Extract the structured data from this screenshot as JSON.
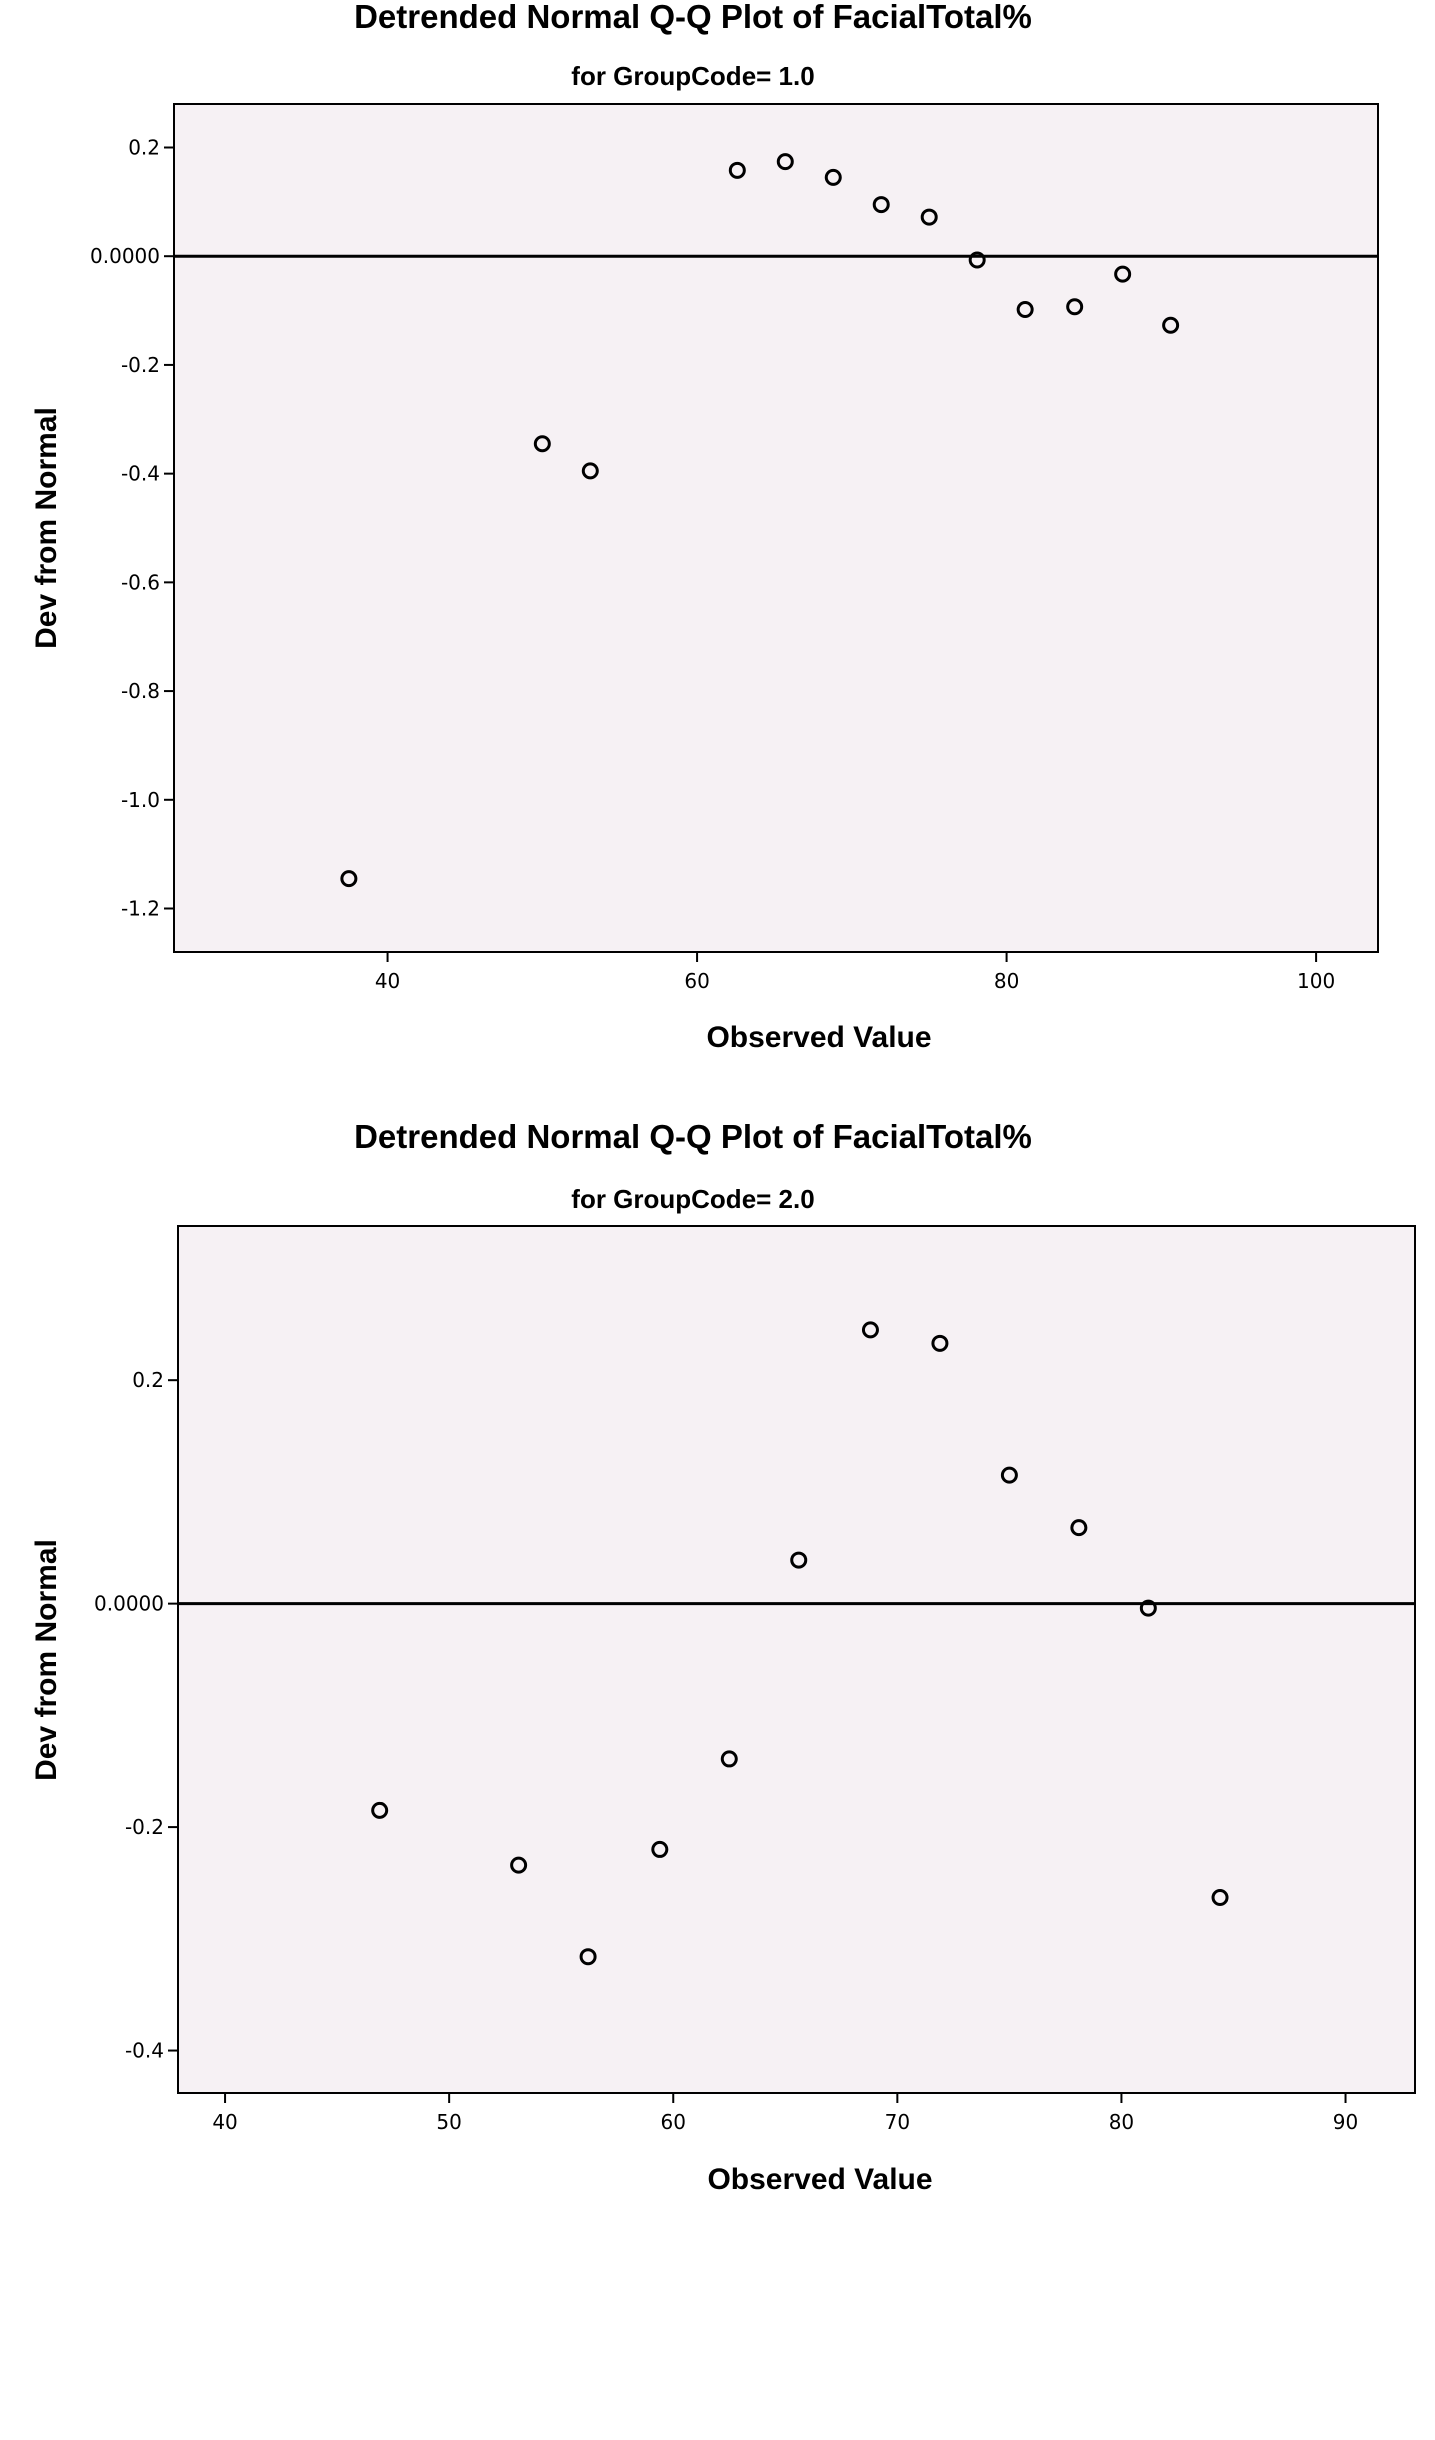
{
  "chart_data": [
    {
      "type": "scatter",
      "title": "Detrended Normal Q-Q Plot of FacialTotal%",
      "subtitle": "for GroupCode= 1.0",
      "xlabel": "Observed Value",
      "ylabel": "Dev from Normal",
      "xlim": [
        26.2,
        104
      ],
      "ylim": [
        -1.28,
        0.28
      ],
      "xticks": [
        40,
        60,
        80,
        100
      ],
      "xtick_labels": [
        "40",
        "60",
        "80",
        "100"
      ],
      "yticks": [
        0.2,
        0.0,
        -0.2,
        -0.4,
        -0.6,
        -0.8,
        -1.0,
        -1.2
      ],
      "ytick_labels": [
        "0.2",
        "0.0000",
        "-0.2",
        "-0.4",
        "-0.6",
        "-0.8",
        "-1.0",
        "-1.2"
      ],
      "reference_line": 0,
      "grid": false,
      "marker": "open-circle",
      "colors": {
        "plot_background": "#f6f1f4",
        "marker": "#000000",
        "reference_line": "#000000"
      },
      "points": [
        {
          "x": 37.5,
          "y": -1.145
        },
        {
          "x": 50.0,
          "y": -0.345
        },
        {
          "x": 53.1,
          "y": -0.395
        },
        {
          "x": 62.6,
          "y": 0.158
        },
        {
          "x": 65.7,
          "y": 0.174
        },
        {
          "x": 68.8,
          "y": 0.145
        },
        {
          "x": 71.9,
          "y": 0.095
        },
        {
          "x": 75.0,
          "y": 0.072
        },
        {
          "x": 78.1,
          "y": -0.007
        },
        {
          "x": 81.2,
          "y": -0.098
        },
        {
          "x": 84.4,
          "y": -0.093
        },
        {
          "x": 87.5,
          "y": -0.033
        },
        {
          "x": 90.6,
          "y": -0.127
        }
      ]
    },
    {
      "type": "scatter",
      "title": "Detrended Normal Q-Q Plot of FacialTotal%",
      "subtitle": "for GroupCode= 2.0",
      "xlabel": "Observed Value",
      "ylabel": "Dev from Normal",
      "xlim": [
        37.9,
        93.1
      ],
      "ylim": [
        -0.438,
        0.338
      ],
      "xticks": [
        40,
        50,
        60,
        70,
        80,
        90
      ],
      "xtick_labels": [
        "40",
        "50",
        "60",
        "70",
        "80",
        "90"
      ],
      "yticks": [
        0.2,
        0.0,
        -0.2,
        -0.4
      ],
      "ytick_labels": [
        "0.2",
        "0.0000",
        "-0.2",
        "-0.4"
      ],
      "reference_line": 0,
      "grid": false,
      "marker": "open-circle",
      "colors": {
        "plot_background": "#f6f1f4",
        "marker": "#000000",
        "reference_line": "#000000"
      },
      "points": [
        {
          "x": 46.9,
          "y": -0.185
        },
        {
          "x": 53.1,
          "y": -0.234
        },
        {
          "x": 56.2,
          "y": -0.316
        },
        {
          "x": 59.4,
          "y": -0.22
        },
        {
          "x": 62.5,
          "y": -0.139
        },
        {
          "x": 65.6,
          "y": 0.039
        },
        {
          "x": 68.8,
          "y": 0.245
        },
        {
          "x": 71.9,
          "y": 0.233
        },
        {
          "x": 75.0,
          "y": 0.115
        },
        {
          "x": 78.1,
          "y": 0.068
        },
        {
          "x": 81.2,
          "y": -0.004
        },
        {
          "x": 84.4,
          "y": -0.263
        }
      ]
    }
  ]
}
